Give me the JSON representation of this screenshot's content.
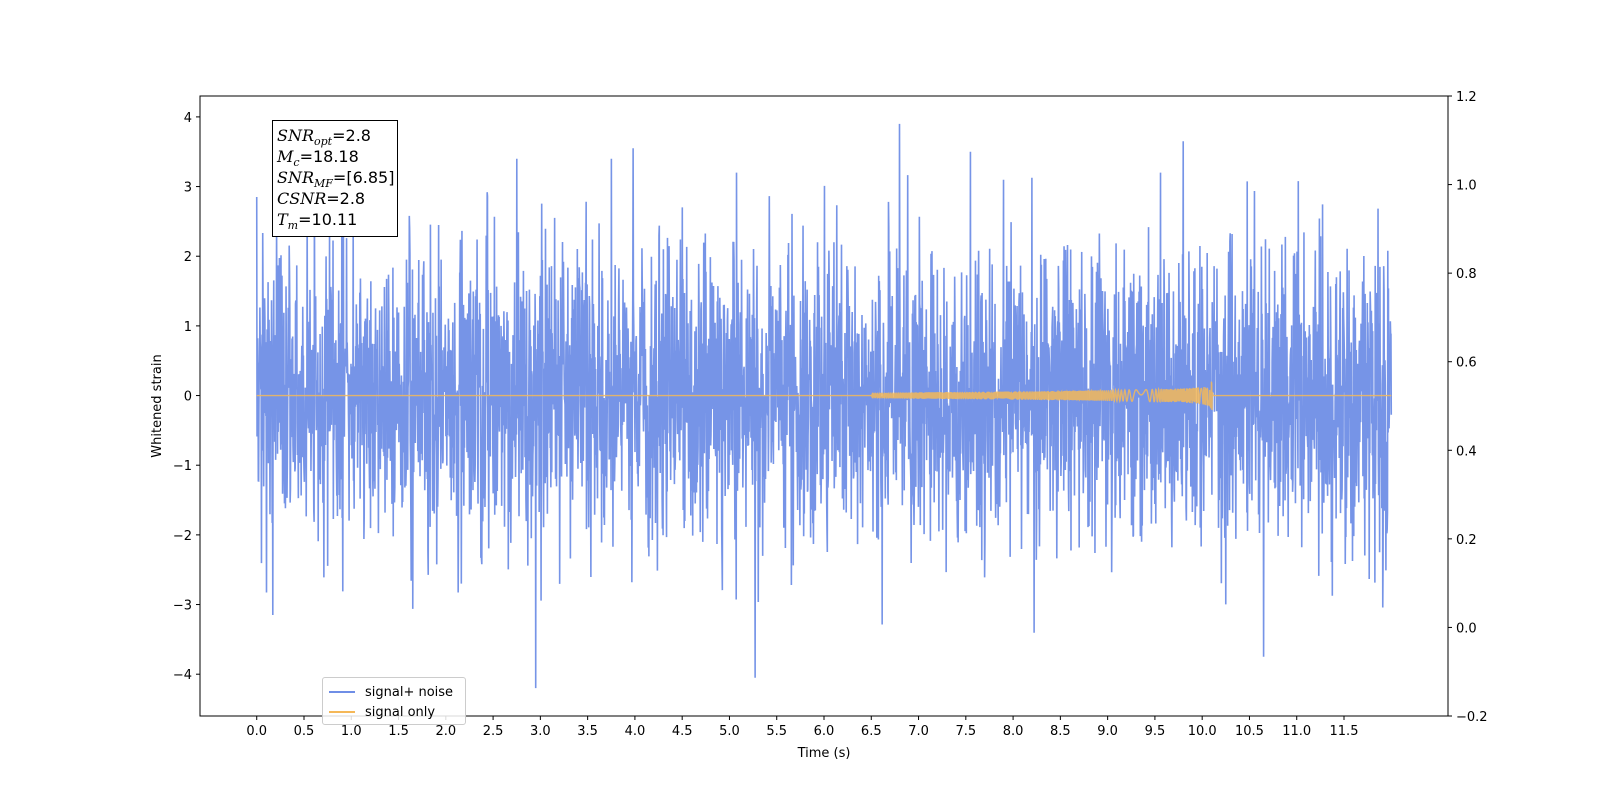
{
  "chart_data": {
    "type": "line",
    "xlabel": "Time (s)",
    "ylabel": "Whitened strain",
    "xlim": [
      -0.6,
      12.6
    ],
    "ylim": [
      -4.6,
      4.3
    ],
    "xticks": [
      0.0,
      0.5,
      1.0,
      1.5,
      2.0,
      2.5,
      3.0,
      3.5,
      4.0,
      4.5,
      5.0,
      5.5,
      6.0,
      6.5,
      7.0,
      7.5,
      8.0,
      8.5,
      9.0,
      9.5,
      10.0,
      10.5,
      11.0,
      11.5
    ],
    "yticks": [
      -4,
      -3,
      -2,
      -1,
      0,
      1,
      2,
      3,
      4
    ],
    "y2lim": [
      -0.2,
      1.2
    ],
    "y2ticks": [
      -0.2,
      0.0,
      0.2,
      0.4,
      0.6,
      0.8,
      1.0,
      1.2
    ],
    "grid": false,
    "legend_position": "lower-left",
    "series": [
      {
        "name": "signal+ noise",
        "color": "#6f8ee6",
        "t_start": 0.0,
        "t_end": 12.0,
        "envelope_typical": 2.5,
        "peaks": [
          {
            "x": 0.0,
            "y": 2.85
          },
          {
            "x": 0.9,
            "y": 3.0
          },
          {
            "x": 2.75,
            "y": 3.4
          },
          {
            "x": 3.75,
            "y": 3.4
          },
          {
            "x": 3.98,
            "y": 3.55
          },
          {
            "x": 6.8,
            "y": 3.9
          },
          {
            "x": 7.55,
            "y": 3.5
          },
          {
            "x": 9.8,
            "y": 3.65
          },
          {
            "x": 2.95,
            "y": -4.2
          },
          {
            "x": 5.27,
            "y": -4.05
          },
          {
            "x": 10.65,
            "y": -3.75
          },
          {
            "x": 0.17,
            "y": -3.15
          }
        ]
      },
      {
        "name": "signal only",
        "color": "#f5b858",
        "merger_time": 10.11,
        "peak_amplitude": 0.5,
        "chirp_start": 6.5
      }
    ]
  },
  "annotation": {
    "snr_opt_label": "SNR",
    "snr_opt_sub": "opt",
    "snr_opt_value": "=2.8",
    "mc_label": "M",
    "mc_sub": "c",
    "mc_value": "=18.18",
    "snr_mf_label": "SNR",
    "snr_mf_sub": "MF",
    "snr_mf_value": "=[6.85]",
    "csnr_label": "CSNR",
    "csnr_value": "=2.8",
    "tm_label": "T",
    "tm_sub": "m",
    "tm_value": "=10.11"
  },
  "legend": {
    "items": [
      {
        "label": "signal+ noise",
        "color": "#6f8ee6"
      },
      {
        "label": "signal only",
        "color": "#f5b858"
      }
    ]
  }
}
